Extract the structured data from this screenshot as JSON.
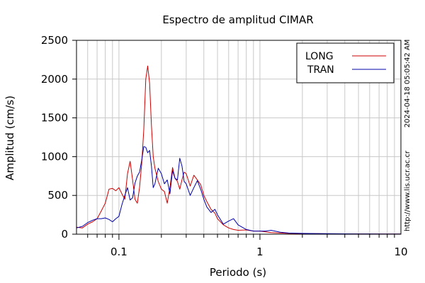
{
  "chart_data": {
    "type": "line",
    "title": "Espectro de amplitud CIMAR",
    "xlabel": "Periodo (s)",
    "ylabel": "Amplitud (cm/s)",
    "x_scale": "log",
    "xlim": [
      0.05,
      10
    ],
    "ylim": [
      0,
      2500
    ],
    "x_ticks": [
      0.1,
      1,
      10
    ],
    "x_tick_labels": [
      "0.1",
      "1",
      "10"
    ],
    "y_ticks": [
      0,
      500,
      1000,
      1500,
      2000,
      2500
    ],
    "y_tick_labels": [
      "0",
      "500",
      "1000",
      "1500",
      "2000",
      "2500"
    ],
    "grid": true,
    "legend_position": "top-right",
    "side_text_top": "2024-04-18 05:05:42 AM",
    "side_text_bottom": "http://www.lis.ucr.ac.cr",
    "series": [
      {
        "name": "LONG",
        "color": "#cc0000",
        "x": [
          0.05,
          0.055,
          0.06,
          0.065,
          0.07,
          0.075,
          0.08,
          0.085,
          0.09,
          0.095,
          0.1,
          0.105,
          0.11,
          0.115,
          0.12,
          0.125,
          0.13,
          0.135,
          0.14,
          0.145,
          0.15,
          0.155,
          0.16,
          0.165,
          0.17,
          0.175,
          0.18,
          0.19,
          0.2,
          0.21,
          0.22,
          0.23,
          0.24,
          0.25,
          0.26,
          0.27,
          0.28,
          0.29,
          0.3,
          0.32,
          0.34,
          0.36,
          0.38,
          0.4,
          0.42,
          0.45,
          0.48,
          0.5,
          0.55,
          0.6,
          0.65,
          0.7,
          0.8,
          0.9,
          1.0,
          1.1,
          1.2,
          1.4,
          1.6,
          2.0,
          2.5,
          3.0,
          4.0,
          5.0,
          6.0,
          8.0,
          10.0
        ],
        "y": [
          90,
          80,
          130,
          160,
          200,
          300,
          400,
          580,
          590,
          560,
          600,
          520,
          450,
          780,
          940,
          700,
          450,
          400,
          600,
          900,
          1350,
          2000,
          2170,
          1950,
          1400,
          1000,
          850,
          680,
          580,
          550,
          400,
          600,
          860,
          720,
          680,
          580,
          700,
          800,
          780,
          620,
          760,
          700,
          640,
          500,
          420,
          320,
          270,
          200,
          120,
          80,
          60,
          50,
          55,
          40,
          40,
          30,
          20,
          15,
          10,
          8,
          6,
          5,
          4,
          4,
          3,
          3,
          2
        ]
      },
      {
        "name": "TRAN",
        "color": "#0000aa",
        "x": [
          0.05,
          0.055,
          0.06,
          0.065,
          0.07,
          0.075,
          0.08,
          0.085,
          0.09,
          0.095,
          0.1,
          0.105,
          0.11,
          0.115,
          0.12,
          0.125,
          0.13,
          0.135,
          0.14,
          0.145,
          0.15,
          0.155,
          0.16,
          0.165,
          0.17,
          0.175,
          0.18,
          0.19,
          0.2,
          0.21,
          0.22,
          0.23,
          0.24,
          0.25,
          0.26,
          0.27,
          0.28,
          0.29,
          0.3,
          0.32,
          0.34,
          0.36,
          0.38,
          0.4,
          0.42,
          0.45,
          0.48,
          0.5,
          0.55,
          0.6,
          0.65,
          0.7,
          0.8,
          0.9,
          1.0,
          1.1,
          1.2,
          1.4,
          1.6,
          2.0,
          2.5,
          3.0,
          4.0,
          5.0,
          6.0,
          8.0,
          10.0
        ],
        "y": [
          80,
          100,
          150,
          180,
          200,
          200,
          210,
          190,
          160,
          200,
          230,
          380,
          500,
          600,
          440,
          470,
          660,
          750,
          800,
          950,
          1130,
          1120,
          1050,
          1080,
          880,
          600,
          650,
          850,
          780,
          650,
          700,
          520,
          820,
          720,
          700,
          980,
          880,
          680,
          650,
          500,
          600,
          690,
          580,
          450,
          350,
          280,
          320,
          250,
          130,
          170,
          200,
          120,
          60,
          40,
          40,
          40,
          50,
          25,
          15,
          10,
          8,
          6,
          5,
          4,
          4,
          3,
          2
        ]
      }
    ]
  }
}
